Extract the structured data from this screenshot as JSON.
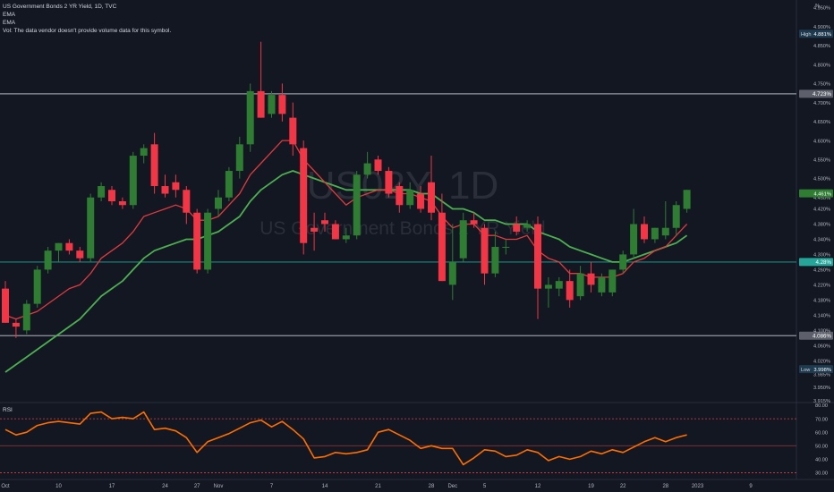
{
  "header": {
    "symbol_line": "US Government Bonds 2 YR Yield, 1D, TVC",
    "ema_1": "EMA",
    "ema_2": "EMA",
    "volume_note": "Vol: The data vendor doesn't provide volume data for this symbol."
  },
  "watermark": {
    "ticker": "US02Y, 1D",
    "name": "US Government Bonds 2 YR Yield"
  },
  "colors": {
    "background": "#131722",
    "up": "#26a69a",
    "up_body": "#2e7d32",
    "down": "#f23645",
    "ema_fast": "#e03a3e",
    "ema_slow": "#4caf50",
    "rsi": "#ff6d00",
    "level_line": "#9598a1",
    "price_line": "#26a69a",
    "axis_text": "#b2b5be"
  },
  "chart_data": [
    {
      "type": "candlestick",
      "title": "US Government Bonds 2 YR Yield, 1D, TVC",
      "ylabel": "%",
      "ylim": [
        3.91,
        4.97
      ],
      "y_ticks": [
        "4.950%",
        "4.900%",
        "4.850%",
        "4.800%",
        "4.750%",
        "4.700%",
        "4.650%",
        "4.600%",
        "4.550%",
        "4.500%",
        "4.450%",
        "4.420%",
        "4.380%",
        "4.340%",
        "4.300%",
        "4.260%",
        "4.220%",
        "4.180%",
        "4.140%",
        "4.100%",
        "4.060%",
        "4.020%",
        "3.985%",
        "3.950%",
        "3.915%"
      ],
      "x_ticks": [
        {
          "label": "Oct",
          "index": 0
        },
        {
          "label": "10",
          "index": 5
        },
        {
          "label": "17",
          "index": 10
        },
        {
          "label": "24",
          "index": 15
        },
        {
          "label": "27",
          "index": 18
        },
        {
          "label": "Nov",
          "index": 20
        },
        {
          "label": "7",
          "index": 25
        },
        {
          "label": "14",
          "index": 30
        },
        {
          "label": "21",
          "index": 35
        },
        {
          "label": "28",
          "index": 40
        },
        {
          "label": "Dec",
          "index": 42
        },
        {
          "label": "5",
          "index": 45
        },
        {
          "label": "12",
          "index": 50
        },
        {
          "label": "19",
          "index": 55
        },
        {
          "label": "22",
          "index": 58
        },
        {
          "label": "28",
          "index": 62
        },
        {
          "label": "2023",
          "index": 65
        },
        {
          "label": "9",
          "index": 70
        }
      ],
      "candles": [
        {
          "o": 4.21,
          "h": 4.23,
          "l": 4.12,
          "c": 4.12
        },
        {
          "o": 4.12,
          "h": 4.13,
          "l": 4.08,
          "c": 4.11
        },
        {
          "o": 4.1,
          "h": 4.18,
          "l": 4.09,
          "c": 4.17
        },
        {
          "o": 4.17,
          "h": 4.27,
          "l": 4.16,
          "c": 4.26
        },
        {
          "o": 4.26,
          "h": 4.32,
          "l": 4.25,
          "c": 4.31
        },
        {
          "o": 4.31,
          "h": 4.33,
          "l": 4.28,
          "c": 4.33
        },
        {
          "o": 4.33,
          "h": 4.34,
          "l": 4.3,
          "c": 4.31
        },
        {
          "o": 4.31,
          "h": 4.32,
          "l": 4.28,
          "c": 4.29
        },
        {
          "o": 4.29,
          "h": 4.46,
          "l": 4.28,
          "c": 4.45
        },
        {
          "o": 4.45,
          "h": 4.49,
          "l": 4.44,
          "c": 4.48
        },
        {
          "o": 4.47,
          "h": 4.48,
          "l": 4.43,
          "c": 4.44
        },
        {
          "o": 4.44,
          "h": 4.45,
          "l": 4.42,
          "c": 4.43
        },
        {
          "o": 4.43,
          "h": 4.57,
          "l": 4.42,
          "c": 4.56
        },
        {
          "o": 4.56,
          "h": 4.59,
          "l": 4.54,
          "c": 4.58
        },
        {
          "o": 4.59,
          "h": 4.62,
          "l": 4.46,
          "c": 4.48
        },
        {
          "o": 4.48,
          "h": 4.51,
          "l": 4.45,
          "c": 4.46
        },
        {
          "o": 4.49,
          "h": 4.51,
          "l": 4.45,
          "c": 4.47
        },
        {
          "o": 4.47,
          "h": 4.48,
          "l": 4.38,
          "c": 4.41
        },
        {
          "o": 4.41,
          "h": 4.42,
          "l": 4.25,
          "c": 4.26
        },
        {
          "o": 4.26,
          "h": 4.42,
          "l": 4.25,
          "c": 4.41
        },
        {
          "o": 4.42,
          "h": 4.47,
          "l": 4.4,
          "c": 4.45
        },
        {
          "o": 4.45,
          "h": 4.53,
          "l": 4.44,
          "c": 4.52
        },
        {
          "o": 4.52,
          "h": 4.61,
          "l": 4.5,
          "c": 4.59
        },
        {
          "o": 4.59,
          "h": 4.75,
          "l": 4.57,
          "c": 4.73
        },
        {
          "o": 4.73,
          "h": 4.86,
          "l": 4.66,
          "c": 4.66
        },
        {
          "o": 4.67,
          "h": 4.73,
          "l": 4.66,
          "c": 4.72
        },
        {
          "o": 4.72,
          "h": 4.75,
          "l": 4.65,
          "c": 4.67
        },
        {
          "o": 4.66,
          "h": 4.7,
          "l": 4.56,
          "c": 4.59
        },
        {
          "o": 4.58,
          "h": 4.6,
          "l": 4.3,
          "c": 4.33
        },
        {
          "o": 4.37,
          "h": 4.41,
          "l": 4.31,
          "c": 4.36
        },
        {
          "o": 4.39,
          "h": 4.41,
          "l": 4.36,
          "c": 4.38
        },
        {
          "o": 4.38,
          "h": 4.39,
          "l": 4.34,
          "c": 4.34
        },
        {
          "o": 4.34,
          "h": 4.37,
          "l": 4.33,
          "c": 4.35
        },
        {
          "o": 4.35,
          "h": 4.52,
          "l": 4.34,
          "c": 4.51
        },
        {
          "o": 4.51,
          "h": 4.57,
          "l": 4.5,
          "c": 4.54
        },
        {
          "o": 4.55,
          "h": 4.56,
          "l": 4.51,
          "c": 4.52
        },
        {
          "o": 4.52,
          "h": 4.53,
          "l": 4.45,
          "c": 4.46
        },
        {
          "o": 4.48,
          "h": 4.49,
          "l": 4.41,
          "c": 4.43
        },
        {
          "o": 4.43,
          "h": 4.49,
          "l": 4.42,
          "c": 4.47
        },
        {
          "o": 4.46,
          "h": 4.48,
          "l": 4.41,
          "c": 4.42
        },
        {
          "o": 4.49,
          "h": 4.56,
          "l": 4.39,
          "c": 4.41
        },
        {
          "o": 4.41,
          "h": 4.46,
          "l": 4.23,
          "c": 4.23
        },
        {
          "o": 4.22,
          "h": 4.38,
          "l": 4.18,
          "c": 4.28
        },
        {
          "o": 4.29,
          "h": 4.41,
          "l": 4.28,
          "c": 4.39
        },
        {
          "o": 4.39,
          "h": 4.41,
          "l": 4.37,
          "c": 4.38
        },
        {
          "o": 4.37,
          "h": 4.38,
          "l": 4.22,
          "c": 4.25
        },
        {
          "o": 4.25,
          "h": 4.36,
          "l": 4.24,
          "c": 4.32
        },
        {
          "o": 4.32,
          "h": 4.34,
          "l": 4.3,
          "c": 4.32
        },
        {
          "o": 4.38,
          "h": 4.4,
          "l": 4.35,
          "c": 4.36
        },
        {
          "o": 4.37,
          "h": 4.39,
          "l": 4.36,
          "c": 4.38
        },
        {
          "o": 4.38,
          "h": 4.4,
          "l": 4.13,
          "c": 4.21
        },
        {
          "o": 4.21,
          "h": 4.24,
          "l": 4.16,
          "c": 4.22
        },
        {
          "o": 4.21,
          "h": 4.24,
          "l": 4.19,
          "c": 4.23
        },
        {
          "o": 4.23,
          "h": 4.26,
          "l": 4.16,
          "c": 4.18
        },
        {
          "o": 4.19,
          "h": 4.27,
          "l": 4.18,
          "c": 4.25
        },
        {
          "o": 4.25,
          "h": 4.28,
          "l": 4.2,
          "c": 4.22
        },
        {
          "o": 4.2,
          "h": 4.25,
          "l": 4.19,
          "c": 4.24
        },
        {
          "o": 4.2,
          "h": 4.26,
          "l": 4.19,
          "c": 4.26
        },
        {
          "o": 4.26,
          "h": 4.31,
          "l": 4.25,
          "c": 4.3
        },
        {
          "o": 4.3,
          "h": 4.42,
          "l": 4.29,
          "c": 4.38
        },
        {
          "o": 4.38,
          "h": 4.4,
          "l": 4.33,
          "c": 4.34
        },
        {
          "o": 4.34,
          "h": 4.37,
          "l": 4.33,
          "c": 4.37
        },
        {
          "o": 4.35,
          "h": 4.44,
          "l": 4.34,
          "c": 4.37
        },
        {
          "o": 4.37,
          "h": 4.44,
          "l": 4.35,
          "c": 4.43
        },
        {
          "o": 4.42,
          "h": 4.47,
          "l": 4.41,
          "c": 4.47
        }
      ],
      "ema_fast": [
        4.14,
        4.13,
        4.14,
        4.15,
        4.17,
        4.19,
        4.21,
        4.22,
        4.25,
        4.29,
        4.31,
        4.33,
        4.36,
        4.4,
        4.41,
        4.42,
        4.43,
        4.42,
        4.39,
        4.39,
        4.4,
        4.43,
        4.46,
        4.51,
        4.54,
        4.57,
        4.6,
        4.6,
        4.55,
        4.52,
        4.49,
        4.46,
        4.43,
        4.45,
        4.46,
        4.47,
        4.47,
        4.46,
        4.46,
        4.45,
        4.44,
        4.4,
        4.37,
        4.38,
        4.38,
        4.35,
        4.35,
        4.34,
        4.34,
        4.35,
        4.31,
        4.29,
        4.28,
        4.25,
        4.25,
        4.24,
        4.24,
        4.24,
        4.25,
        4.28,
        4.29,
        4.31,
        4.32,
        4.35,
        4.38
      ],
      "ema_slow": [
        3.99,
        4.01,
        4.03,
        4.05,
        4.07,
        4.09,
        4.11,
        4.13,
        4.16,
        4.19,
        4.21,
        4.23,
        4.26,
        4.29,
        4.31,
        4.32,
        4.33,
        4.34,
        4.34,
        4.35,
        4.36,
        4.38,
        4.4,
        4.44,
        4.47,
        4.49,
        4.51,
        4.52,
        4.51,
        4.5,
        4.49,
        4.48,
        4.47,
        4.47,
        4.47,
        4.47,
        4.47,
        4.47,
        4.47,
        4.46,
        4.46,
        4.44,
        4.42,
        4.42,
        4.41,
        4.39,
        4.39,
        4.38,
        4.38,
        4.38,
        4.36,
        4.35,
        4.34,
        4.32,
        4.31,
        4.3,
        4.29,
        4.28,
        4.28,
        4.29,
        4.3,
        4.31,
        4.32,
        4.33,
        4.35
      ],
      "horizontal_levels": [
        {
          "value": 4.723,
          "label": "4.723%",
          "style": "level"
        },
        {
          "value": 4.28,
          "label": "4.28%",
          "style": "price"
        },
        {
          "value": 4.086,
          "label": "4.086%",
          "style": "level"
        }
      ],
      "price_badges": [
        {
          "value": 4.881,
          "tag": "High",
          "label": "4.881%"
        },
        {
          "value": 4.461,
          "tag": "",
          "label": "4.461%"
        },
        {
          "value": 3.998,
          "tag": "Low",
          "label": "3.998%"
        }
      ]
    },
    {
      "type": "line",
      "title": "RSI",
      "ylim": [
        25,
        82
      ],
      "y_ticks": [
        "80.00",
        "70.00",
        "60.00",
        "50.00",
        "40.00",
        "30.00"
      ],
      "bands": [
        70,
        50,
        30
      ],
      "values": [
        62,
        58,
        60,
        65,
        67,
        68,
        67,
        66,
        74,
        75,
        70,
        71,
        70,
        75,
        62,
        63,
        61,
        56,
        45,
        53,
        56,
        59,
        63,
        67,
        69,
        64,
        68,
        62,
        55,
        41,
        42,
        45,
        44,
        45,
        47,
        60,
        62,
        58,
        54,
        48,
        50,
        48,
        48,
        36,
        41,
        47,
        46,
        42,
        43,
        47,
        45,
        39,
        42,
        40,
        42,
        46,
        44,
        47,
        45,
        49,
        53,
        56,
        53,
        56,
        58
      ]
    }
  ]
}
